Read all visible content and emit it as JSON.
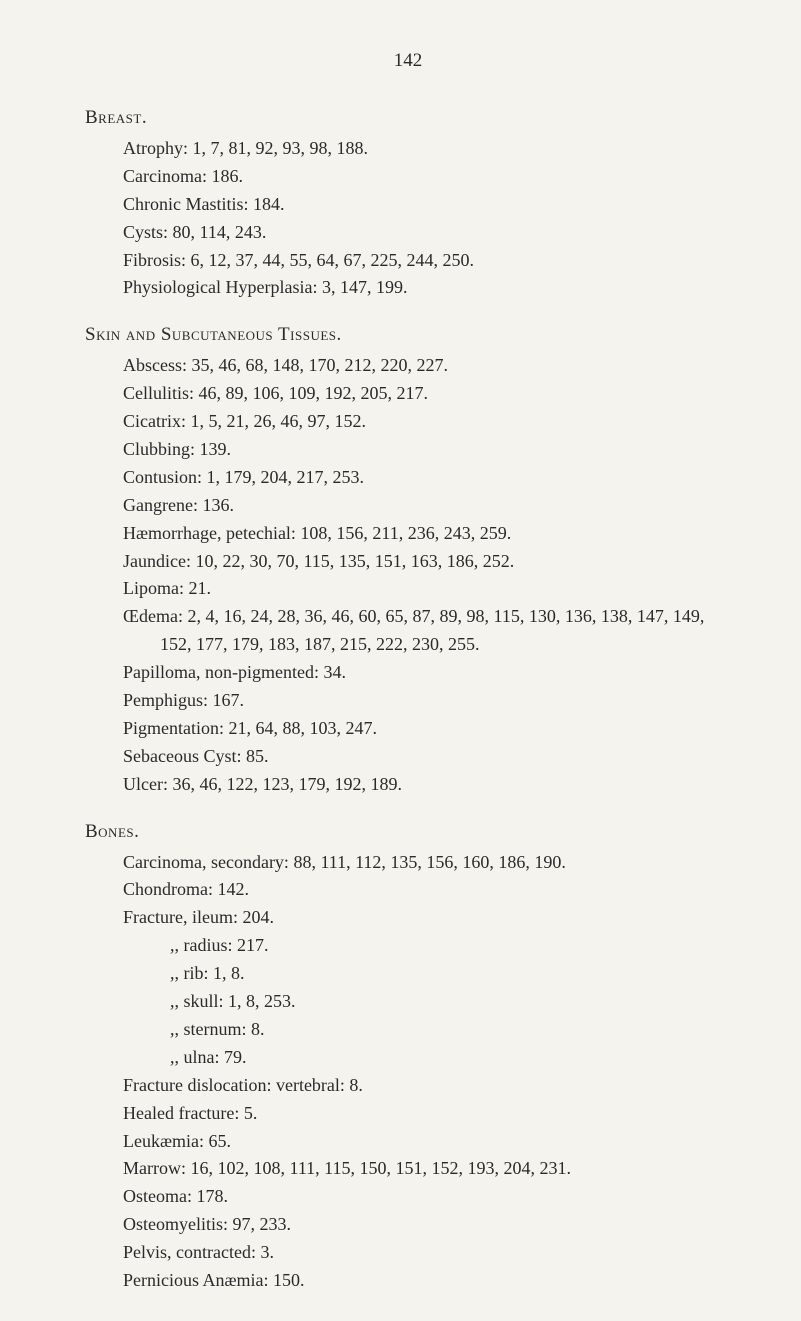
{
  "page_number": "142",
  "sections": {
    "breast": {
      "title": "Breast.",
      "entries": [
        "Atrophy:  1, 7, 81, 92, 93, 98, 188.",
        "Carcinoma:  186.",
        "Chronic Mastitis:  184.",
        "Cysts:  80, 114, 243.",
        "Fibrosis:  6, 12, 37, 44, 55, 64, 67, 225, 244, 250.",
        "Physiological Hyperplasia:  3, 147, 199."
      ]
    },
    "skin": {
      "title": "Skin and Subcutaneous Tissues.",
      "entries": [
        "Abscess:  35, 46, 68, 148, 170, 212, 220, 227.",
        "Cellulitis:  46, 89, 106, 109, 192, 205, 217.",
        "Cicatrix:  1, 5, 21, 26, 46, 97, 152.",
        "Clubbing:  139.",
        "Contusion:  1, 179, 204, 217, 253.",
        "Gangrene:  136.",
        "Hæmorrhage, petechial:  108, 156, 211, 236, 243, 259.",
        "Jaundice:  10, 22, 30, 70, 115, 135, 151, 163, 186, 252.",
        "Lipoma:  21.",
        "Œdema:  2, 4, 16, 24, 28, 36, 46, 60, 65, 87, 89, 98, 115, 130, 136, 138, 147, 149, 152, 177, 179, 183, 187, 215, 222, 230, 255.",
        "Papilloma, non-pigmented:  34.",
        "Pemphigus:  167.",
        "Pigmentation:  21, 64, 88, 103, 247.",
        "Sebaceous Cyst:  85.",
        "Ulcer:  36, 46, 122, 123, 179, 192, 189."
      ]
    },
    "bones": {
      "title": "Bones.",
      "entries": [
        "Carcinoma, secondary:  88, 111, 112, 135, 156, 160, 186, 190.",
        "Chondroma:  142.",
        "Fracture, ileum:  204."
      ],
      "sub_entries": [
        ",,     radius:  217.",
        ",,     rib:  1, 8.",
        ",,     skull:  1, 8, 253.",
        ",,     sternum:  8.",
        ",,     ulna:  79."
      ],
      "entries2": [
        "Fracture dislocation:  vertebral:  8.",
        "Healed fracture:  5.",
        "Leukæmia:  65.",
        "Marrow:  16, 102, 108, 111, 115, 150, 151, 152, 193, 204, 231.",
        "Osteoma:  178.",
        "Osteomyelitis:  97, 233.",
        "Pelvis, contracted:  3.",
        "Pernicious Anæmia:  150."
      ]
    }
  }
}
